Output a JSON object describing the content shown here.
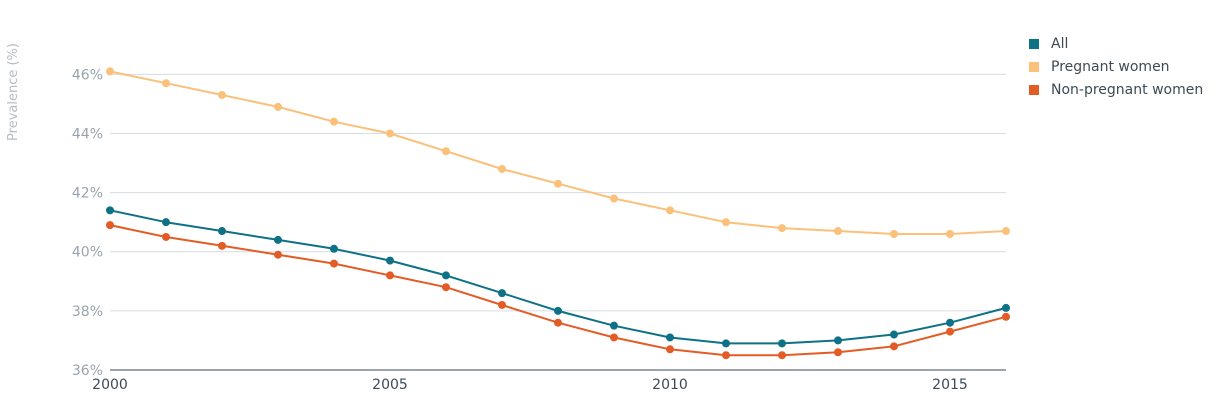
{
  "chart_data": {
    "type": "line",
    "xlabel": "",
    "ylabel": "Prevalence (%)",
    "x": [
      2000,
      2001,
      2002,
      2003,
      2004,
      2005,
      2006,
      2007,
      2008,
      2009,
      2010,
      2011,
      2012,
      2013,
      2014,
      2015,
      2016
    ],
    "x_ticks": [
      2000,
      2005,
      2010,
      2015
    ],
    "x_tick_labels": [
      "2000",
      "2005",
      "2010",
      "2015"
    ],
    "xlim": [
      2000,
      2016
    ],
    "ylim": [
      36,
      47.5
    ],
    "y_ticks": [
      36,
      38,
      40,
      42,
      44,
      46
    ],
    "y_tick_labels": [
      "36%",
      "38%",
      "40%",
      "42%",
      "44%",
      "46%"
    ],
    "grid": "horizontal",
    "legend_position": "top-right",
    "series": [
      {
        "name": "All",
        "color": "#0e7185",
        "values": [
          41.4,
          41.0,
          40.7,
          40.4,
          40.1,
          39.7,
          39.2,
          38.6,
          38.0,
          37.5,
          37.1,
          36.9,
          36.9,
          37.0,
          37.2,
          37.6,
          38.1
        ]
      },
      {
        "name": "Pregnant women",
        "color": "#fbc07a",
        "values": [
          46.1,
          45.7,
          45.3,
          44.9,
          44.4,
          44.0,
          43.4,
          42.8,
          42.3,
          41.8,
          41.4,
          41.0,
          40.8,
          40.7,
          40.6,
          40.6,
          40.7
        ]
      },
      {
        "name": "Non-pregnant women",
        "color": "#e35c26",
        "values": [
          40.9,
          40.5,
          40.2,
          39.9,
          39.6,
          39.2,
          38.8,
          38.2,
          37.6,
          37.1,
          36.7,
          36.5,
          36.5,
          36.6,
          36.8,
          37.3,
          37.8
        ]
      }
    ]
  }
}
